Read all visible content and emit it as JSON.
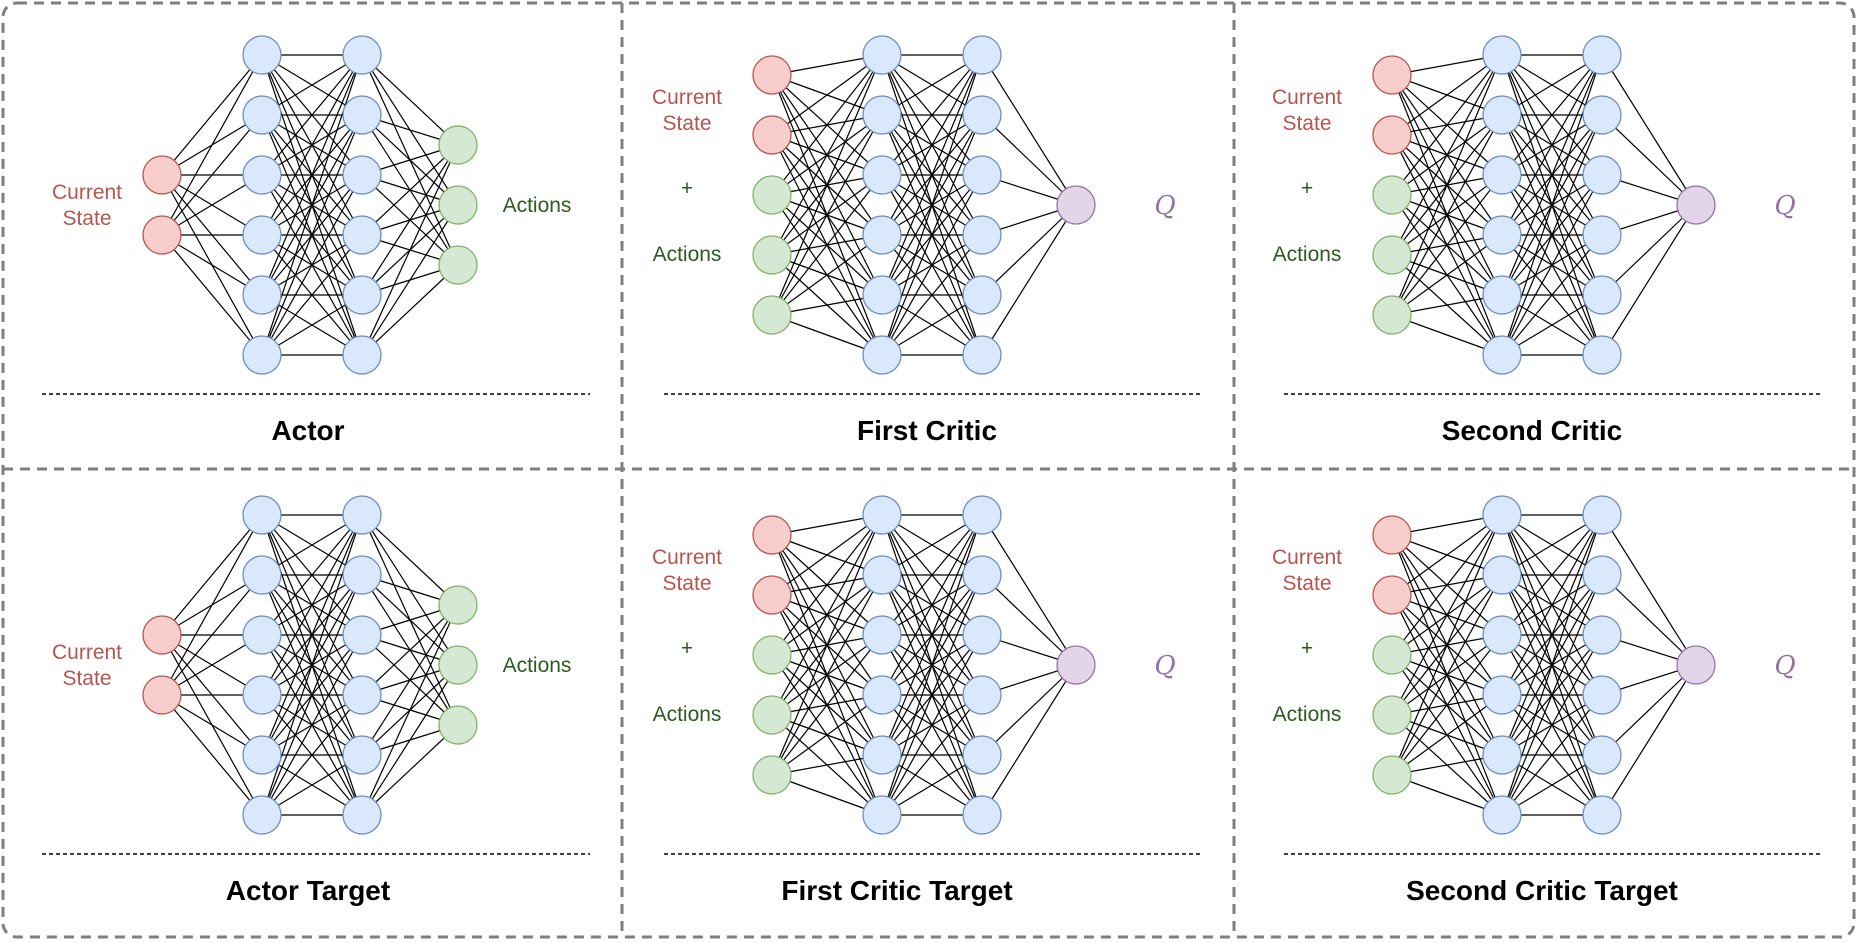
{
  "colors": {
    "state_fill": "#f8cecc",
    "state_stroke": "#b85450",
    "hidden_fill": "#dae8fc",
    "hidden_stroke": "#6c8ebf",
    "action_fill": "#d5e8d4",
    "action_stroke": "#82b366",
    "q_fill": "#e1d5e7",
    "q_stroke": "#9673a6",
    "label_red": "#b85450",
    "label_green": "#2d5a1f",
    "label_q": "#9673a6",
    "border": "#7f7f7f"
  },
  "panels": [
    {
      "type": "actor",
      "title": "Actor",
      "state_label": [
        "Current",
        "State"
      ],
      "action_label": "Actions"
    },
    {
      "type": "critic",
      "title": "First Critic",
      "state_label": [
        "Current",
        "State"
      ],
      "plus_label": "+",
      "action_label": "Actions",
      "q_label": "Q"
    },
    {
      "type": "critic",
      "title": "Second Critic",
      "state_label": [
        "Current",
        "State"
      ],
      "plus_label": "+",
      "action_label": "Actions",
      "q_label": "Q"
    },
    {
      "type": "actor",
      "title": "Actor Target",
      "state_label": [
        "Current",
        "State"
      ],
      "action_label": "Actions"
    },
    {
      "type": "critic",
      "title": "First Critic Target",
      "state_label": [
        "Current",
        "State"
      ],
      "plus_label": "+",
      "action_label": "Actions",
      "q_label": "Q"
    },
    {
      "type": "critic",
      "title": "Second Critic Target",
      "state_label": [
        "Current",
        "State"
      ],
      "plus_label": "+",
      "action_label": "Actions",
      "q_label": "Q"
    }
  ]
}
